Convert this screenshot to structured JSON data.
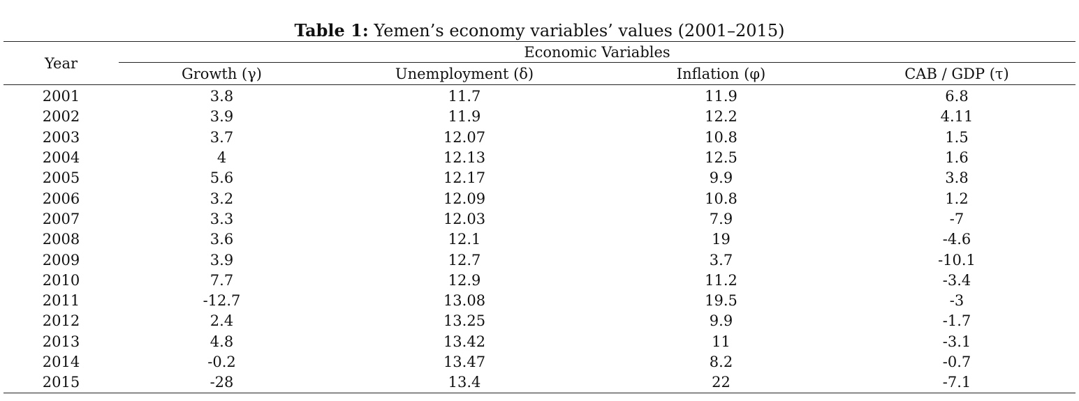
{
  "caption": {
    "label": "Table 1:",
    "text": "Yemen’s economy variables’ values (2001–2015)"
  },
  "table": {
    "year_header": "Year",
    "group_header": "Economic Variables",
    "columns": [
      "Growth (γ)",
      "Unemployment (δ)",
      "Inflation (φ)",
      "CAB / GDP (τ)"
    ],
    "rows": [
      [
        "2001",
        "3.8",
        "11.7",
        "11.9",
        "6.8"
      ],
      [
        "2002",
        "3.9",
        "11.9",
        "12.2",
        "4.11"
      ],
      [
        "2003",
        "3.7",
        "12.07",
        "10.8",
        "1.5"
      ],
      [
        "2004",
        "4",
        "12.13",
        "12.5",
        "1.6"
      ],
      [
        "2005",
        "5.6",
        "12.17",
        "9.9",
        "3.8"
      ],
      [
        "2006",
        "3.2",
        "12.09",
        "10.8",
        "1.2"
      ],
      [
        "2007",
        "3.3",
        "12.03",
        "7.9",
        "-7"
      ],
      [
        "2008",
        "3.6",
        "12.1",
        "19",
        "-4.6"
      ],
      [
        "2009",
        "3.9",
        "12.7",
        "3.7",
        "-10.1"
      ],
      [
        "2010",
        "7.7",
        "12.9",
        "11.2",
        "-3.4"
      ],
      [
        "2011",
        "-12.7",
        "13.08",
        "19.5",
        "-3"
      ],
      [
        "2012",
        "2.4",
        "13.25",
        "9.9",
        "-1.7"
      ],
      [
        "2013",
        "4.8",
        "13.42",
        "11",
        "-3.1"
      ],
      [
        "2014",
        "-0.2",
        "13.47",
        "8.2",
        "-0.7"
      ],
      [
        "2015",
        "-28",
        "13.4",
        "22",
        "-7.1"
      ]
    ]
  }
}
